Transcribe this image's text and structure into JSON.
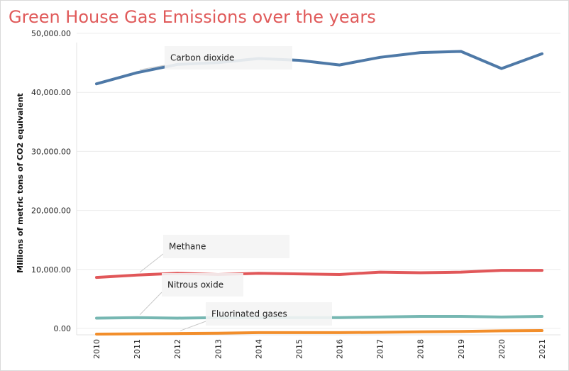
{
  "chart_data": {
    "type": "line",
    "title": "Green House Gas Emissions over the years",
    "xlabel": "",
    "ylabel": "Millions of metric tons of CO2 equivalent",
    "x": [
      "2010",
      "2011",
      "2012",
      "2013",
      "2014",
      "2015",
      "2016",
      "2017",
      "2018",
      "2019",
      "2020",
      "2021"
    ],
    "ylim": [
      0,
      50000
    ],
    "yticks": [
      "0.00",
      "10,000.00",
      "20,000.00",
      "30,000.00",
      "40,000.00",
      "50,000.00"
    ],
    "ytick_values": [
      0,
      10000,
      20000,
      30000,
      40000,
      50000
    ],
    "grid": true,
    "series": [
      {
        "name": "Carbon dioxide",
        "color": "#4e79a7",
        "values": [
          42400,
          44300,
          45700,
          46000,
          46700,
          46400,
          45600,
          46900,
          47700,
          47900,
          45000,
          47500
        ]
      },
      {
        "name": "Methane",
        "color": "#e15759",
        "values": [
          9600,
          10000,
          10300,
          10100,
          10300,
          10200,
          10100,
          10500,
          10400,
          10500,
          10800,
          10800
        ]
      },
      {
        "name": "Nitrous oxide",
        "color": "#76b7b2",
        "values": [
          2700,
          2800,
          2700,
          2800,
          2800,
          2800,
          2800,
          2900,
          3000,
          3000,
          2900,
          3000
        ]
      },
      {
        "name": "Fluorinated gases",
        "color": "#f28e2b",
        "values": [
          0,
          50,
          100,
          150,
          250,
          250,
          250,
          300,
          400,
          450,
          550,
          600
        ]
      }
    ]
  }
}
